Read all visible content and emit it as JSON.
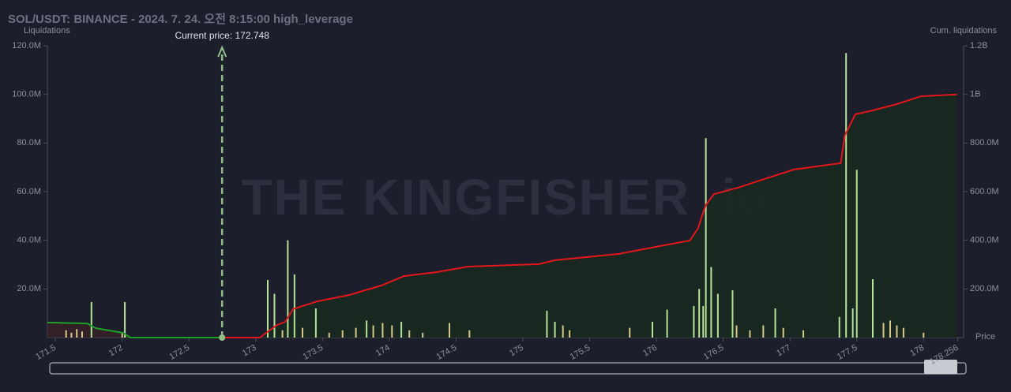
{
  "chart_data": {
    "type": "bar",
    "title": "SOL/USDT: BINANCE - 2024. 7. 24. 오전 8:15:00 high_leverage",
    "y_label": "Liquidations",
    "y2_label": "Cum. liquidations",
    "x_label": "Price",
    "watermark": "THE KINGFISHER .io",
    "current_price": {
      "value": 172.748,
      "label": "Current price: 172.748"
    },
    "xlim": [
      171.44,
      178.3
    ],
    "xticks": [
      171.5,
      172,
      172.5,
      173,
      173.5,
      174,
      174.5,
      175,
      175.5,
      176,
      176.5,
      177,
      177.5,
      178,
      178.256
    ],
    "ylim": [
      0,
      120000000
    ],
    "yticks": [
      {
        "value": 20000000,
        "label": "20.0M"
      },
      {
        "value": 40000000,
        "label": "40.0M"
      },
      {
        "value": 60000000,
        "label": "60.0M"
      },
      {
        "value": 80000000,
        "label": "80.0M"
      },
      {
        "value": 100000000,
        "label": "100.0M"
      },
      {
        "value": 120000000,
        "label": "120.0M"
      }
    ],
    "y2lim": [
      0,
      1200000000
    ],
    "y2ticks": [
      {
        "value": 200000000,
        "label": "200.0M"
      },
      {
        "value": 400000000,
        "label": "400.0M"
      },
      {
        "value": 600000000,
        "label": "600.0M"
      },
      {
        "value": 800000000,
        "label": "800.0M"
      },
      {
        "value": 1000000000,
        "label": "1B"
      },
      {
        "value": 1200000000,
        "label": "1.2B"
      }
    ],
    "series": [
      {
        "type": "bar",
        "color": "#b6e39a",
        "x": [
          171.77,
          172.02,
          173.09,
          173.14,
          173.24,
          173.29,
          173.45,
          173.83,
          174.09,
          175.18,
          175.24,
          175.97,
          176.08,
          176.28,
          176.32,
          176.35,
          176.37,
          176.41,
          176.46,
          176.57,
          176.89,
          177.37,
          177.42,
          177.47,
          177.5,
          177.62
        ],
        "values": [
          14600000,
          14600000,
          23700000,
          18000000,
          40000000,
          26000000,
          12000000,
          7000000,
          6500000,
          11000000,
          6500000,
          6500000,
          11500000,
          13000000,
          20000000,
          13000000,
          82000000,
          29000000,
          18000000,
          19500000,
          12000000,
          8500000,
          117000000,
          12000000,
          69000000,
          24000000
        ]
      },
      {
        "type": "bar",
        "color": "#d8c98a",
        "x": [
          171.58,
          171.62,
          171.66,
          171.7,
          172.0,
          173.2,
          173.35,
          173.55,
          173.65,
          173.75,
          173.88,
          173.95,
          174.02,
          174.15,
          174.25,
          174.45,
          174.6,
          175.3,
          175.35,
          175.8,
          176.6,
          176.7,
          176.8,
          176.95,
          177.1,
          177.7,
          177.75,
          177.8,
          177.85,
          178.0
        ],
        "values": [
          3000000,
          2000000,
          3500000,
          2500000,
          2000000,
          3000000,
          4000000,
          2000000,
          3000000,
          4000000,
          5000000,
          6000000,
          5000000,
          3000000,
          2000000,
          6000000,
          3000000,
          5000000,
          3000000,
          4000000,
          5000000,
          3000000,
          5000000,
          4000000,
          3000000,
          6000000,
          7000000,
          5000000,
          4000000,
          2000000
        ]
      },
      {
        "type": "line",
        "axis": "y2",
        "color": "#1f9e2a",
        "x": [
          171.44,
          171.74,
          171.8,
          172.01,
          172.06,
          172.748
        ],
        "values": [
          62000000,
          58000000,
          39000000,
          19000000,
          0,
          0
        ]
      },
      {
        "type": "line",
        "axis": "y2",
        "color": "#e3161b",
        "area": "#17291f",
        "x": [
          172.748,
          173.03,
          173.16,
          173.22,
          173.28,
          173.46,
          173.7,
          173.94,
          174.11,
          174.35,
          174.59,
          175.12,
          175.24,
          175.72,
          176.02,
          176.25,
          176.31,
          176.37,
          176.43,
          176.61,
          176.79,
          177.03,
          177.38,
          177.41,
          177.49,
          177.62,
          177.8,
          177.98,
          178.25
        ],
        "values": [
          0,
          0,
          52000000,
          65000000,
          117000000,
          149000000,
          175000000,
          214000000,
          253000000,
          269000000,
          292000000,
          302000000,
          318000000,
          344000000,
          376000000,
          399000000,
          448000000,
          545000000,
          590000000,
          616000000,
          649000000,
          691000000,
          717000000,
          830000000,
          918000000,
          934000000,
          960000000,
          992000000,
          1000000000
        ]
      }
    ]
  }
}
